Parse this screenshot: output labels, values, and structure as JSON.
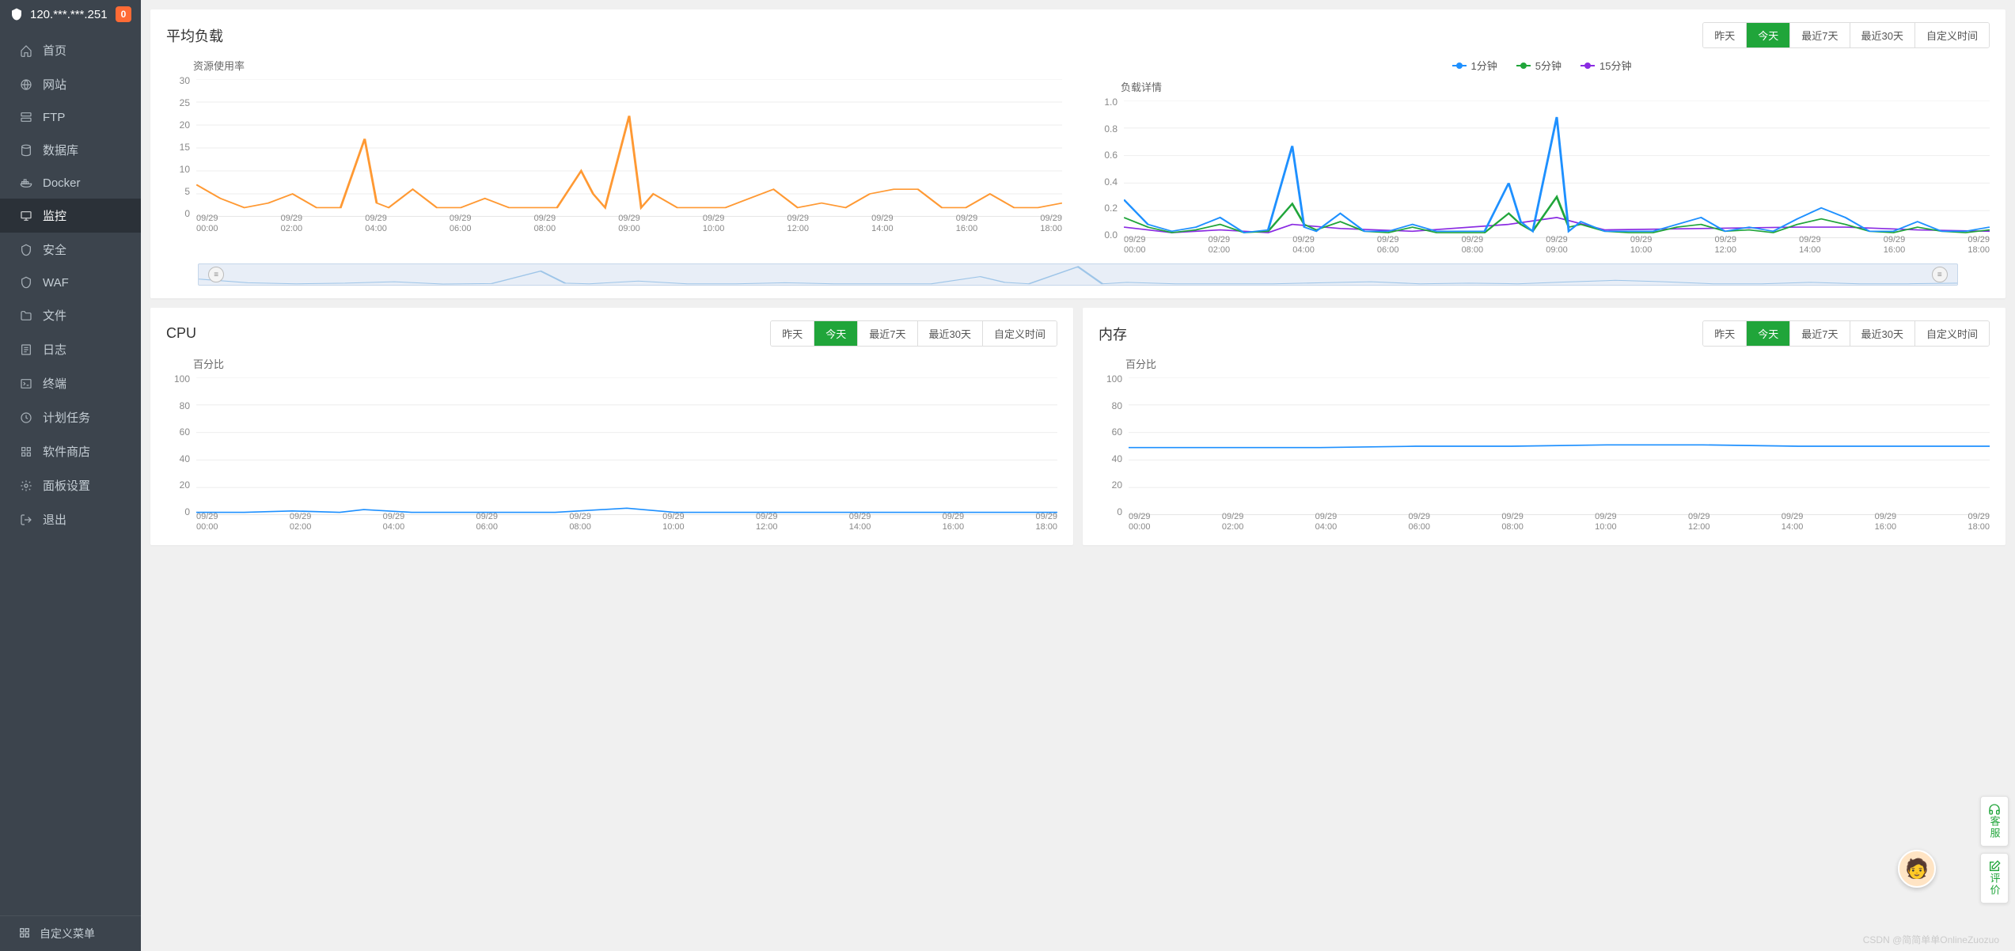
{
  "sidebar": {
    "ip": "120.***.***.251",
    "badge": "0",
    "items": [
      {
        "icon": "home",
        "label": "首页"
      },
      {
        "icon": "globe",
        "label": "网站"
      },
      {
        "icon": "server",
        "label": "FTP"
      },
      {
        "icon": "database",
        "label": "数据库"
      },
      {
        "icon": "docker",
        "label": "Docker"
      },
      {
        "icon": "monitor",
        "label": "监控",
        "active": true
      },
      {
        "icon": "shield",
        "label": "安全"
      },
      {
        "icon": "waf",
        "label": "WAF"
      },
      {
        "icon": "folder",
        "label": "文件"
      },
      {
        "icon": "log",
        "label": "日志"
      },
      {
        "icon": "terminal",
        "label": "终端"
      },
      {
        "icon": "task",
        "label": "计划任务"
      },
      {
        "icon": "store",
        "label": "软件商店"
      },
      {
        "icon": "settings",
        "label": "面板设置"
      },
      {
        "icon": "exit",
        "label": "退出"
      }
    ],
    "footer": {
      "label": "自定义菜单"
    }
  },
  "time_buttons": [
    "昨天",
    "今天",
    "最近7天",
    "最近30天",
    "自定义时间"
  ],
  "time_active_index": 1,
  "load_card": {
    "title": "平均负载",
    "left_chart": {
      "title": "资源使用率",
      "color": "#ff9933",
      "ymax": 30,
      "ytick_step": 5,
      "x_labels": [
        "09/29\n00:00",
        "09/29\n02:00",
        "09/29\n04:00",
        "09/29\n06:00",
        "09/29\n08:00",
        "09/29\n09:00",
        "09/29\n10:00",
        "09/29\n12:00",
        "09/29\n14:00",
        "09/29\n16:00",
        "09/29\n18:00"
      ],
      "series": [
        [
          0,
          7
        ],
        [
          2,
          4
        ],
        [
          4,
          2
        ],
        [
          6,
          3
        ],
        [
          8,
          5
        ],
        [
          10,
          2
        ],
        [
          12,
          2
        ],
        [
          14,
          17
        ],
        [
          15,
          3
        ],
        [
          16,
          2
        ],
        [
          18,
          6
        ],
        [
          20,
          2
        ],
        [
          22,
          2
        ],
        [
          24,
          4
        ],
        [
          26,
          2
        ],
        [
          28,
          2
        ],
        [
          30,
          2
        ],
        [
          32,
          10
        ],
        [
          33,
          5
        ],
        [
          34,
          2
        ],
        [
          36,
          22
        ],
        [
          37,
          2
        ],
        [
          38,
          5
        ],
        [
          40,
          2
        ],
        [
          42,
          2
        ],
        [
          44,
          2
        ],
        [
          46,
          4
        ],
        [
          48,
          6
        ],
        [
          50,
          2
        ],
        [
          52,
          3
        ],
        [
          54,
          2
        ],
        [
          56,
          5
        ],
        [
          58,
          6
        ],
        [
          60,
          6
        ],
        [
          62,
          2
        ],
        [
          64,
          2
        ],
        [
          66,
          5
        ],
        [
          68,
          2
        ],
        [
          70,
          2
        ],
        [
          72,
          3
        ]
      ]
    },
    "right_chart": {
      "title": "负载详情",
      "ymax": 1,
      "ytick_step": 0.2,
      "x_labels": [
        "09/29\n00:00",
        "09/29\n02:00",
        "09/29\n04:00",
        "09/29\n06:00",
        "09/29\n08:00",
        "09/29\n09:00",
        "09/29\n10:00",
        "09/29\n12:00",
        "09/29\n14:00",
        "09/29\n16:00",
        "09/29\n18:00"
      ],
      "legend": [
        {
          "label": "1分钟",
          "color": "#1e90ff"
        },
        {
          "label": "5分钟",
          "color": "#20a53a"
        },
        {
          "label": "15分钟",
          "color": "#8a2be2"
        }
      ],
      "series": {
        "s1": {
          "color": "#1e90ff",
          "points": [
            [
              0,
              0.28
            ],
            [
              2,
              0.1
            ],
            [
              4,
              0.05
            ],
            [
              6,
              0.08
            ],
            [
              8,
              0.15
            ],
            [
              10,
              0.04
            ],
            [
              12,
              0.06
            ],
            [
              14,
              0.67
            ],
            [
              15,
              0.08
            ],
            [
              16,
              0.05
            ],
            [
              18,
              0.18
            ],
            [
              20,
              0.05
            ],
            [
              22,
              0.05
            ],
            [
              24,
              0.1
            ],
            [
              26,
              0.05
            ],
            [
              28,
              0.05
            ],
            [
              30,
              0.05
            ],
            [
              32,
              0.4
            ],
            [
              33,
              0.12
            ],
            [
              34,
              0.05
            ],
            [
              36,
              0.88
            ],
            [
              37,
              0.05
            ],
            [
              38,
              0.12
            ],
            [
              40,
              0.05
            ],
            [
              42,
              0.05
            ],
            [
              44,
              0.05
            ],
            [
              46,
              0.1
            ],
            [
              48,
              0.15
            ],
            [
              50,
              0.05
            ],
            [
              52,
              0.08
            ],
            [
              54,
              0.05
            ],
            [
              56,
              0.14
            ],
            [
              58,
              0.22
            ],
            [
              60,
              0.15
            ],
            [
              62,
              0.05
            ],
            [
              64,
              0.05
            ],
            [
              66,
              0.12
            ],
            [
              68,
              0.05
            ],
            [
              70,
              0.05
            ],
            [
              72,
              0.08
            ]
          ]
        },
        "s5": {
          "color": "#20a53a",
          "points": [
            [
              0,
              0.15
            ],
            [
              2,
              0.08
            ],
            [
              4,
              0.04
            ],
            [
              6,
              0.06
            ],
            [
              8,
              0.1
            ],
            [
              10,
              0.04
            ],
            [
              12,
              0.05
            ],
            [
              14,
              0.25
            ],
            [
              15,
              0.1
            ],
            [
              16,
              0.06
            ],
            [
              18,
              0.12
            ],
            [
              20,
              0.05
            ],
            [
              22,
              0.04
            ],
            [
              24,
              0.08
            ],
            [
              26,
              0.04
            ],
            [
              28,
              0.04
            ],
            [
              30,
              0.04
            ],
            [
              32,
              0.18
            ],
            [
              33,
              0.1
            ],
            [
              34,
              0.05
            ],
            [
              36,
              0.3
            ],
            [
              37,
              0.08
            ],
            [
              38,
              0.1
            ],
            [
              40,
              0.05
            ],
            [
              42,
              0.04
            ],
            [
              44,
              0.04
            ],
            [
              46,
              0.08
            ],
            [
              48,
              0.1
            ],
            [
              50,
              0.05
            ],
            [
              52,
              0.06
            ],
            [
              54,
              0.04
            ],
            [
              56,
              0.1
            ],
            [
              58,
              0.14
            ],
            [
              60,
              0.1
            ],
            [
              62,
              0.05
            ],
            [
              64,
              0.04
            ],
            [
              66,
              0.08
            ],
            [
              68,
              0.05
            ],
            [
              70,
              0.04
            ],
            [
              72,
              0.06
            ]
          ]
        },
        "s15": {
          "color": "#8a2be2",
          "points": [
            [
              0,
              0.08
            ],
            [
              4,
              0.04
            ],
            [
              8,
              0.06
            ],
            [
              12,
              0.04
            ],
            [
              14,
              0.1
            ],
            [
              18,
              0.07
            ],
            [
              24,
              0.05
            ],
            [
              32,
              0.1
            ],
            [
              36,
              0.15
            ],
            [
              40,
              0.06
            ],
            [
              48,
              0.07
            ],
            [
              56,
              0.08
            ],
            [
              60,
              0.08
            ],
            [
              66,
              0.06
            ],
            [
              72,
              0.05
            ]
          ]
        }
      }
    }
  },
  "cpu_card": {
    "title": "CPU",
    "chart": {
      "title": "百分比",
      "color": "#1e90ff",
      "ymax": 100,
      "ytick_step": 20,
      "x_labels": [
        "09/29\n00:00",
        "09/29\n02:00",
        "09/29\n04:00",
        "09/29\n06:00",
        "09/29\n08:00",
        "09/29\n10:00",
        "09/29\n12:00",
        "09/29\n14:00",
        "09/29\n16:00",
        "09/29\n18:00"
      ],
      "series": [
        [
          0,
          2
        ],
        [
          4,
          2
        ],
        [
          8,
          3
        ],
        [
          12,
          2
        ],
        [
          14,
          4
        ],
        [
          18,
          2
        ],
        [
          24,
          2
        ],
        [
          30,
          2
        ],
        [
          36,
          5
        ],
        [
          40,
          2
        ],
        [
          48,
          2
        ],
        [
          56,
          2
        ],
        [
          64,
          2
        ],
        [
          72,
          2
        ]
      ]
    }
  },
  "mem_card": {
    "title": "内存",
    "chart": {
      "title": "百分比",
      "color": "#1e90ff",
      "ymax": 100,
      "ytick_step": 20,
      "x_labels": [
        "09/29\n00:00",
        "09/29\n02:00",
        "09/29\n04:00",
        "09/29\n06:00",
        "09/29\n08:00",
        "09/29\n10:00",
        "09/29\n12:00",
        "09/29\n14:00",
        "09/29\n16:00",
        "09/29\n18:00"
      ],
      "series": [
        [
          0,
          49
        ],
        [
          8,
          49
        ],
        [
          16,
          49
        ],
        [
          24,
          50
        ],
        [
          32,
          50
        ],
        [
          40,
          51
        ],
        [
          48,
          51
        ],
        [
          56,
          50
        ],
        [
          64,
          50
        ],
        [
          72,
          50
        ]
      ]
    }
  },
  "side": {
    "btn1": "客服",
    "btn2": "评价"
  },
  "watermark": "CSDN @简简单单OnlineZuozuo",
  "colors": {
    "sidebar_bg": "#3c444d",
    "active_bg": "#2b3138",
    "primary": "#20a53a",
    "grid": "#eeeeee"
  }
}
